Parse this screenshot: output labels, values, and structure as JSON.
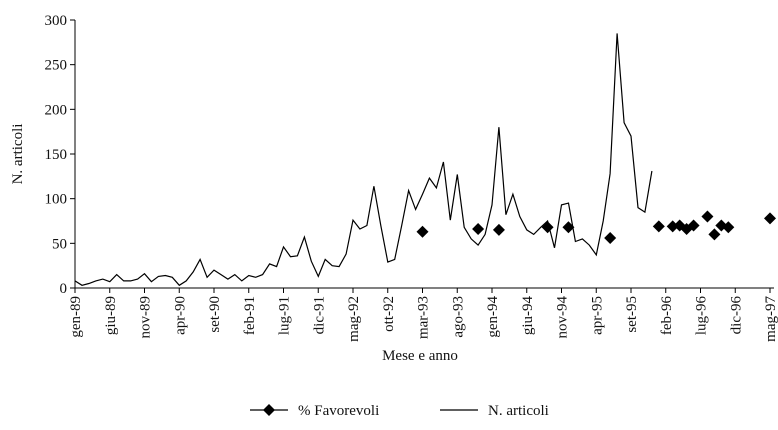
{
  "chart_data": {
    "type": "line",
    "y_label": "N. articoli",
    "x_label": "Mese e anno",
    "categories": [
      "gen-89",
      null,
      null,
      null,
      null,
      "giu-89",
      null,
      null,
      null,
      null,
      "nov-89",
      null,
      null,
      null,
      null,
      "apr-90",
      null,
      null,
      null,
      null,
      "set-90",
      null,
      null,
      null,
      null,
      "feb-91",
      null,
      null,
      null,
      null,
      "lug-91",
      null,
      null,
      null,
      null,
      "dic-91",
      null,
      null,
      null,
      null,
      "mag-92",
      null,
      null,
      null,
      null,
      "ott-92",
      null,
      null,
      null,
      null,
      "mar-93",
      null,
      null,
      null,
      null,
      "ago-93",
      null,
      null,
      null,
      null,
      "gen-94",
      null,
      null,
      null,
      null,
      "giu-94",
      null,
      null,
      null,
      null,
      "nov-94",
      null,
      null,
      null,
      null,
      "apr-95",
      null,
      null,
      null,
      null,
      "set-95",
      null,
      null,
      null,
      null,
      "feb-96",
      null,
      null,
      null,
      null,
      "lug-96",
      null,
      null,
      null,
      null,
      "dic-96",
      null,
      null,
      null,
      null,
      "mag-97"
    ],
    "series": [
      {
        "name": "% Favorevoli",
        "color": "#000000",
        "marker": "diamond",
        "line": false,
        "values": [
          null,
          null,
          null,
          null,
          null,
          null,
          null,
          null,
          null,
          null,
          null,
          null,
          null,
          null,
          null,
          null,
          null,
          null,
          null,
          null,
          null,
          null,
          null,
          null,
          null,
          null,
          null,
          null,
          null,
          null,
          null,
          null,
          null,
          null,
          null,
          null,
          null,
          null,
          null,
          null,
          null,
          null,
          null,
          null,
          null,
          null,
          null,
          null,
          null,
          null,
          63,
          null,
          null,
          null,
          null,
          null,
          null,
          null,
          66,
          null,
          null,
          65,
          null,
          null,
          null,
          null,
          null,
          null,
          68,
          null,
          null,
          68,
          null,
          null,
          null,
          null,
          null,
          56,
          null,
          null,
          null,
          null,
          null,
          null,
          69,
          null,
          69,
          70,
          66,
          70,
          null,
          80,
          60,
          70,
          68,
          null,
          null,
          null,
          null,
          null,
          78
        ]
      },
      {
        "name": "N. articoli",
        "color": "#000000",
        "marker": "none",
        "line": true,
        "values": [
          8,
          3,
          5,
          8,
          10,
          7,
          15,
          8,
          8,
          10,
          16,
          7,
          13,
          14,
          12,
          3,
          8,
          18,
          32,
          12,
          20,
          15,
          10,
          15,
          8,
          14,
          12,
          15,
          27,
          24,
          46,
          35,
          36,
          57,
          30,
          13,
          32,
          25,
          24,
          38,
          76,
          66,
          70,
          114,
          70,
          29,
          32,
          70,
          109,
          88,
          105,
          123,
          112,
          141,
          76,
          127,
          68,
          55,
          48,
          60,
          93,
          180,
          82,
          105,
          80,
          65,
          60,
          68,
          75,
          45,
          93,
          95,
          52,
          55,
          48,
          37,
          75,
          128,
          285,
          185,
          170,
          90,
          85,
          131,
          null,
          null,
          null,
          null,
          null,
          null,
          null,
          null,
          null,
          null,
          null,
          null,
          null,
          null,
          null,
          null,
          null
        ]
      }
    ],
    "ylim": [
      0,
      300
    ],
    "yticks": [
      0,
      50,
      100,
      150,
      200,
      250,
      300
    ],
    "legend": "bottom"
  }
}
